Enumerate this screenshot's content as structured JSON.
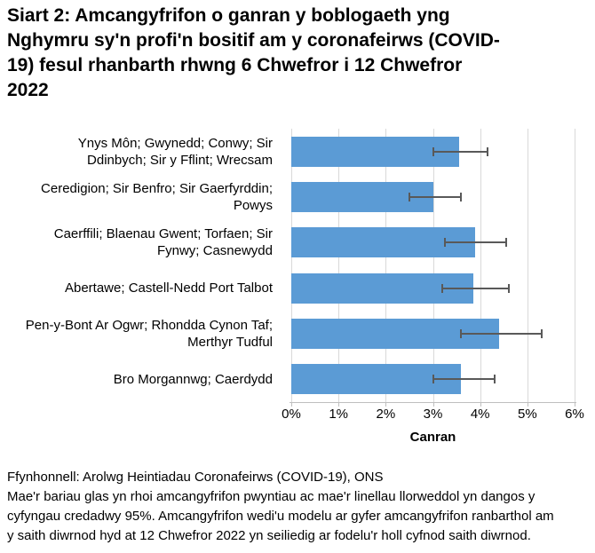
{
  "title": {
    "lines": [
      "Siart 2: Amcangyfrifon o ganran y boblogaeth yng",
      "Nghymru sy'n profi'n bositif am y coronafeirws (COVID-",
      "19) fesul rhanbarth rhwng 6 Chwefror i 12 Chwefror",
      "2022"
    ]
  },
  "chart_data": {
    "type": "bar",
    "orientation": "horizontal",
    "title": "Siart 2: Amcangyfrifon o ganran y boblogaeth yng Nghymru sy'n profi'n bositif am y coronafeirws (COVID-19) fesul rhanbarth rhwng 6 Chwefror i 12 Chwefror 2022",
    "xlabel": "Canran",
    "ylabel": "",
    "xlim": [
      0,
      6
    ],
    "x_ticks": [
      "0%",
      "1%",
      "2%",
      "3%",
      "4%",
      "5%",
      "6%"
    ],
    "grid": true,
    "legend_position": "none",
    "categories": [
      {
        "label": "Ynys Môn; Gwynedd; Conwy; Sir Ddinbych; Sir y Fflint; Wrecsam",
        "lines": [
          "Ynys Môn; Gwynedd; Conwy; Sir",
          "Ddinbych; Sir y Fflint; Wrecsam"
        ],
        "value": 3.55,
        "ci_low": 3.0,
        "ci_high": 4.15
      },
      {
        "label": "Ceredigion; Sir Benfro; Sir Gaerfyrddin; Powys",
        "lines": [
          "Ceredigion; Sir Benfro; Sir Gaerfyrddin;",
          "Powys"
        ],
        "value": 3.0,
        "ci_low": 2.5,
        "ci_high": 3.6
      },
      {
        "label": "Caerffili; Blaenau Gwent; Torfaen; Sir Fynwy; Casnewydd",
        "lines": [
          "Caerffili; Blaenau Gwent; Torfaen; Sir",
          "Fynwy; Casnewydd"
        ],
        "value": 3.9,
        "ci_low": 3.25,
        "ci_high": 4.55
      },
      {
        "label": "Abertawe; Castell-Nedd Port Talbot",
        "lines": [
          "Abertawe; Castell-Nedd Port Talbot"
        ],
        "value": 3.85,
        "ci_low": 3.2,
        "ci_high": 4.6
      },
      {
        "label": "Pen-y-Bont Ar Ogwr; Rhondda Cynon Taf; Merthyr Tudful",
        "lines": [
          "Pen-y-Bont Ar Ogwr; Rhondda Cynon Taf;",
          "Merthyr Tudful"
        ],
        "value": 4.4,
        "ci_low": 3.6,
        "ci_high": 5.3
      },
      {
        "label": "Bro Morgannwg; Caerdydd",
        "lines": [
          "Bro Morgannwg; Caerdydd"
        ],
        "value": 3.6,
        "ci_low": 3.0,
        "ci_high": 4.3
      }
    ],
    "colors": {
      "bar": "#5b9bd5",
      "error_bar": "#595959",
      "gridline": "#d9d9d9",
      "axis": "#bfbfbf",
      "text": "#000000"
    }
  },
  "footer": {
    "source": "Ffynhonnell: Arolwg Heintiadau Coronafeirws (COVID-19), ONS",
    "note_lines": [
      "Mae'r bariau glas yn rhoi amcangyfrifon pwyntiau ac mae'r linellau llorweddol yn dangos y",
      "cyfyngau credadwy 95%. Amcangyfrifon wedi'u modelu ar gyfer amcangyfrifon ranbarthol am",
      "y saith diwrnod hyd at 12 Chwefror 2022 yn seiliedig ar fodelu'r holl cyfnod saith diwrnod."
    ]
  }
}
